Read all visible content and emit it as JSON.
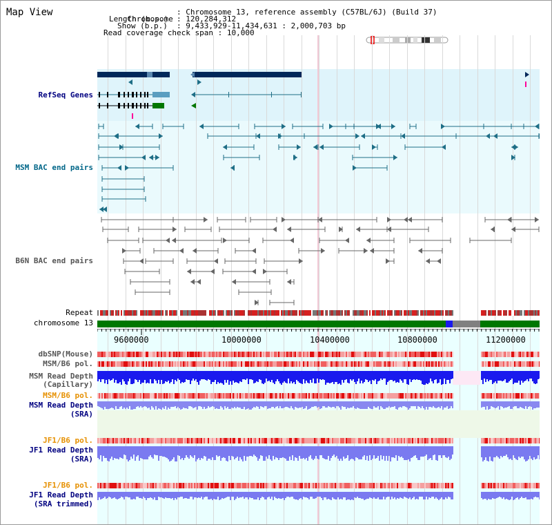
{
  "title": "Map View",
  "info": {
    "chromosome_key": "Chromosome",
    "chromosome_val": "Chromosome 13, reference assembly (C57BL/6J) (Build 37)",
    "length_key": "Length (b.p.)",
    "length_val": "120,284,312",
    "show_key": "Show (b.p.)",
    "show_val": "9,433,929-11,434,631 : 2,000,703 bp",
    "span_key": "Read coverage check span",
    "span_val": "10,000"
  },
  "tracks": {
    "refseq": "RefSeq Genes",
    "msm_bac": "MSM BAC end pairs",
    "b6n_bac": "B6N BAC end pairs",
    "repeat": "Repeat",
    "chrom": "chromosome 13",
    "dbsnp": "dbSNP(Mouse)",
    "msm_pol1": "MSM/B6 pol.",
    "msm_depth_cap_1": "MSM Read Depth",
    "msm_depth_cap_2": "(Capillary)",
    "msm_pol2": "MSM/B6 pol.",
    "msm_depth_sra_1": "MSM Read Depth",
    "msm_depth_sra_2": "(SRA)",
    "jf1_pol1": "JF1/B6 pol.",
    "jf1_depth_sra_1": "JF1 Read Depth",
    "jf1_depth_sra_2": "(SRA)",
    "jf1_pol2": "JF1/B6 pol.",
    "jf1_depth_tr_1": "JF1 Read Depth",
    "jf1_depth_tr_2": "(SRA trimmed)"
  },
  "ruler": {
    "ticks": [
      "9600000",
      "10000000",
      "10400000",
      "10800000",
      "11200000"
    ]
  },
  "colors": {
    "refseq_bg": "#dff4fb",
    "msm_bac_bg": "#eafafd",
    "gene_dark": "#00285a",
    "msm_feature": "#1e6e86",
    "b6n_feature": "#666666",
    "chrom_green": "#007700",
    "depth_blue": "#1a1aee",
    "depth_light": "#8888f0"
  },
  "icons": {
    "chromosome_ideogram": "chromosome-ideogram-icon"
  }
}
